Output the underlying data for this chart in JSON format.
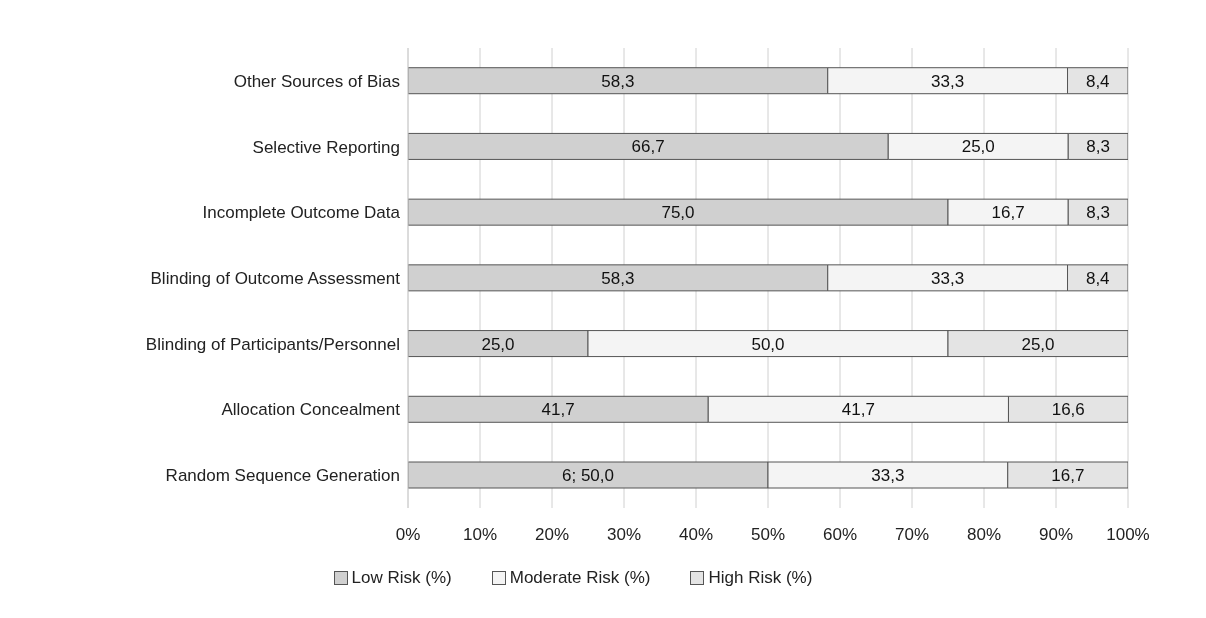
{
  "chart_data": {
    "type": "bar",
    "orientation": "horizontal",
    "stacked": true,
    "categories": [
      "Other Sources of Bias",
      "Selective Reporting",
      "Incomplete Outcome Data",
      "Blinding of Outcome Assessment",
      "Blinding of Participants/Personnel",
      "Allocation Concealment",
      "Random Sequence Generation"
    ],
    "series": [
      {
        "name": "Low Risk (%)",
        "color": "#d0d0d0",
        "values": [
          58.3,
          66.7,
          75.0,
          58.3,
          25.0,
          41.7,
          50.0
        ],
        "value_labels": [
          "58,3",
          "66,7",
          "75,0",
          "58,3",
          "25,0",
          "41,7",
          "6; 50,0"
        ]
      },
      {
        "name": "Moderate Risk (%)",
        "color": "#f4f4f4",
        "values": [
          33.3,
          25.0,
          16.7,
          33.3,
          50.0,
          41.7,
          33.3
        ],
        "value_labels": [
          "33,3",
          "25,0",
          "16,7",
          "33,3",
          "50,0",
          "41,7",
          "33,3"
        ]
      },
      {
        "name": "High Risk (%)",
        "color": "#e4e4e4",
        "values": [
          8.4,
          8.3,
          8.3,
          8.4,
          25.0,
          16.6,
          16.7
        ],
        "value_labels": [
          "8,4",
          "8,3",
          "8,3",
          "8,4",
          "25,0",
          "16,6",
          "16,7"
        ]
      }
    ],
    "xlim": [
      0,
      100
    ],
    "xticks": [
      {
        "value": 0,
        "label": "0%"
      },
      {
        "value": 10,
        "label": "10%"
      },
      {
        "value": 20,
        "label": "20%"
      },
      {
        "value": 30,
        "label": "30%"
      },
      {
        "value": 40,
        "label": "40%"
      },
      {
        "value": 50,
        "label": "50%"
      },
      {
        "value": 60,
        "label": "60%"
      },
      {
        "value": 70,
        "label": "70%"
      },
      {
        "value": 80,
        "label": "80%"
      },
      {
        "value": 90,
        "label": "90%"
      },
      {
        "value": 100,
        "label": "100%"
      }
    ],
    "grid": "x",
    "legend": "bottom"
  }
}
